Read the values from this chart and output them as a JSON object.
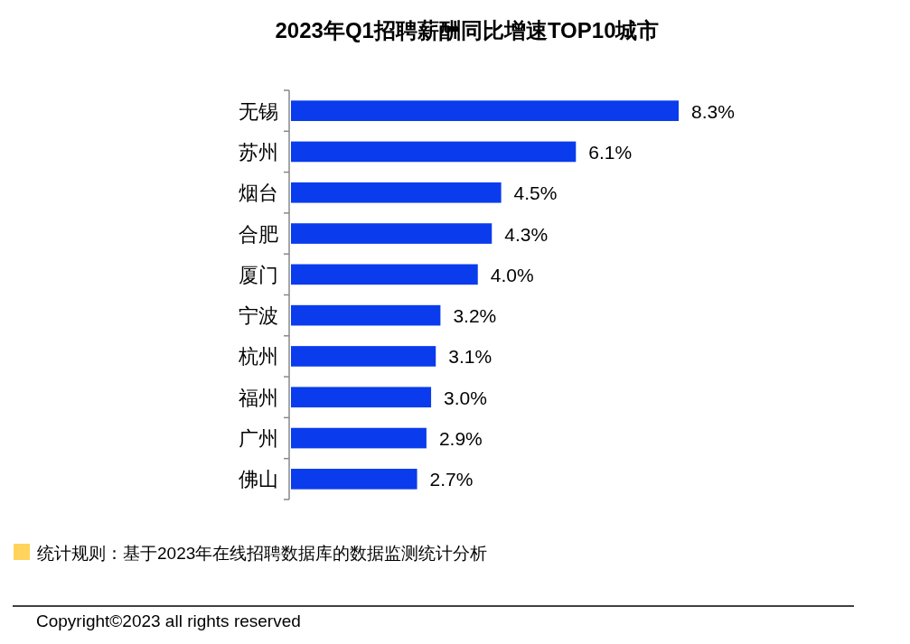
{
  "chart_data": {
    "type": "bar",
    "orientation": "horizontal",
    "title": "2023年Q1招聘薪酬同比增速TOP10城市",
    "categories": [
      "无锡",
      "苏州",
      "烟台",
      "合肥",
      "厦门",
      "宁波",
      "杭州",
      "福州",
      "广州",
      "佛山"
    ],
    "values": [
      8.3,
      6.1,
      4.5,
      4.3,
      4.0,
      3.2,
      3.1,
      3.0,
      2.9,
      2.7
    ],
    "value_labels": [
      "8.3%",
      "6.1%",
      "4.5%",
      "4.3%",
      "4.0%",
      "3.2%",
      "3.1%",
      "3.0%",
      "2.9%",
      "2.7%"
    ],
    "color": "#0a3ced",
    "annotations": [
      "统计规则：基于2023年在线招聘数据库的数据监测统计分析",
      "Copyright©2023 all rights reserved"
    ]
  }
}
